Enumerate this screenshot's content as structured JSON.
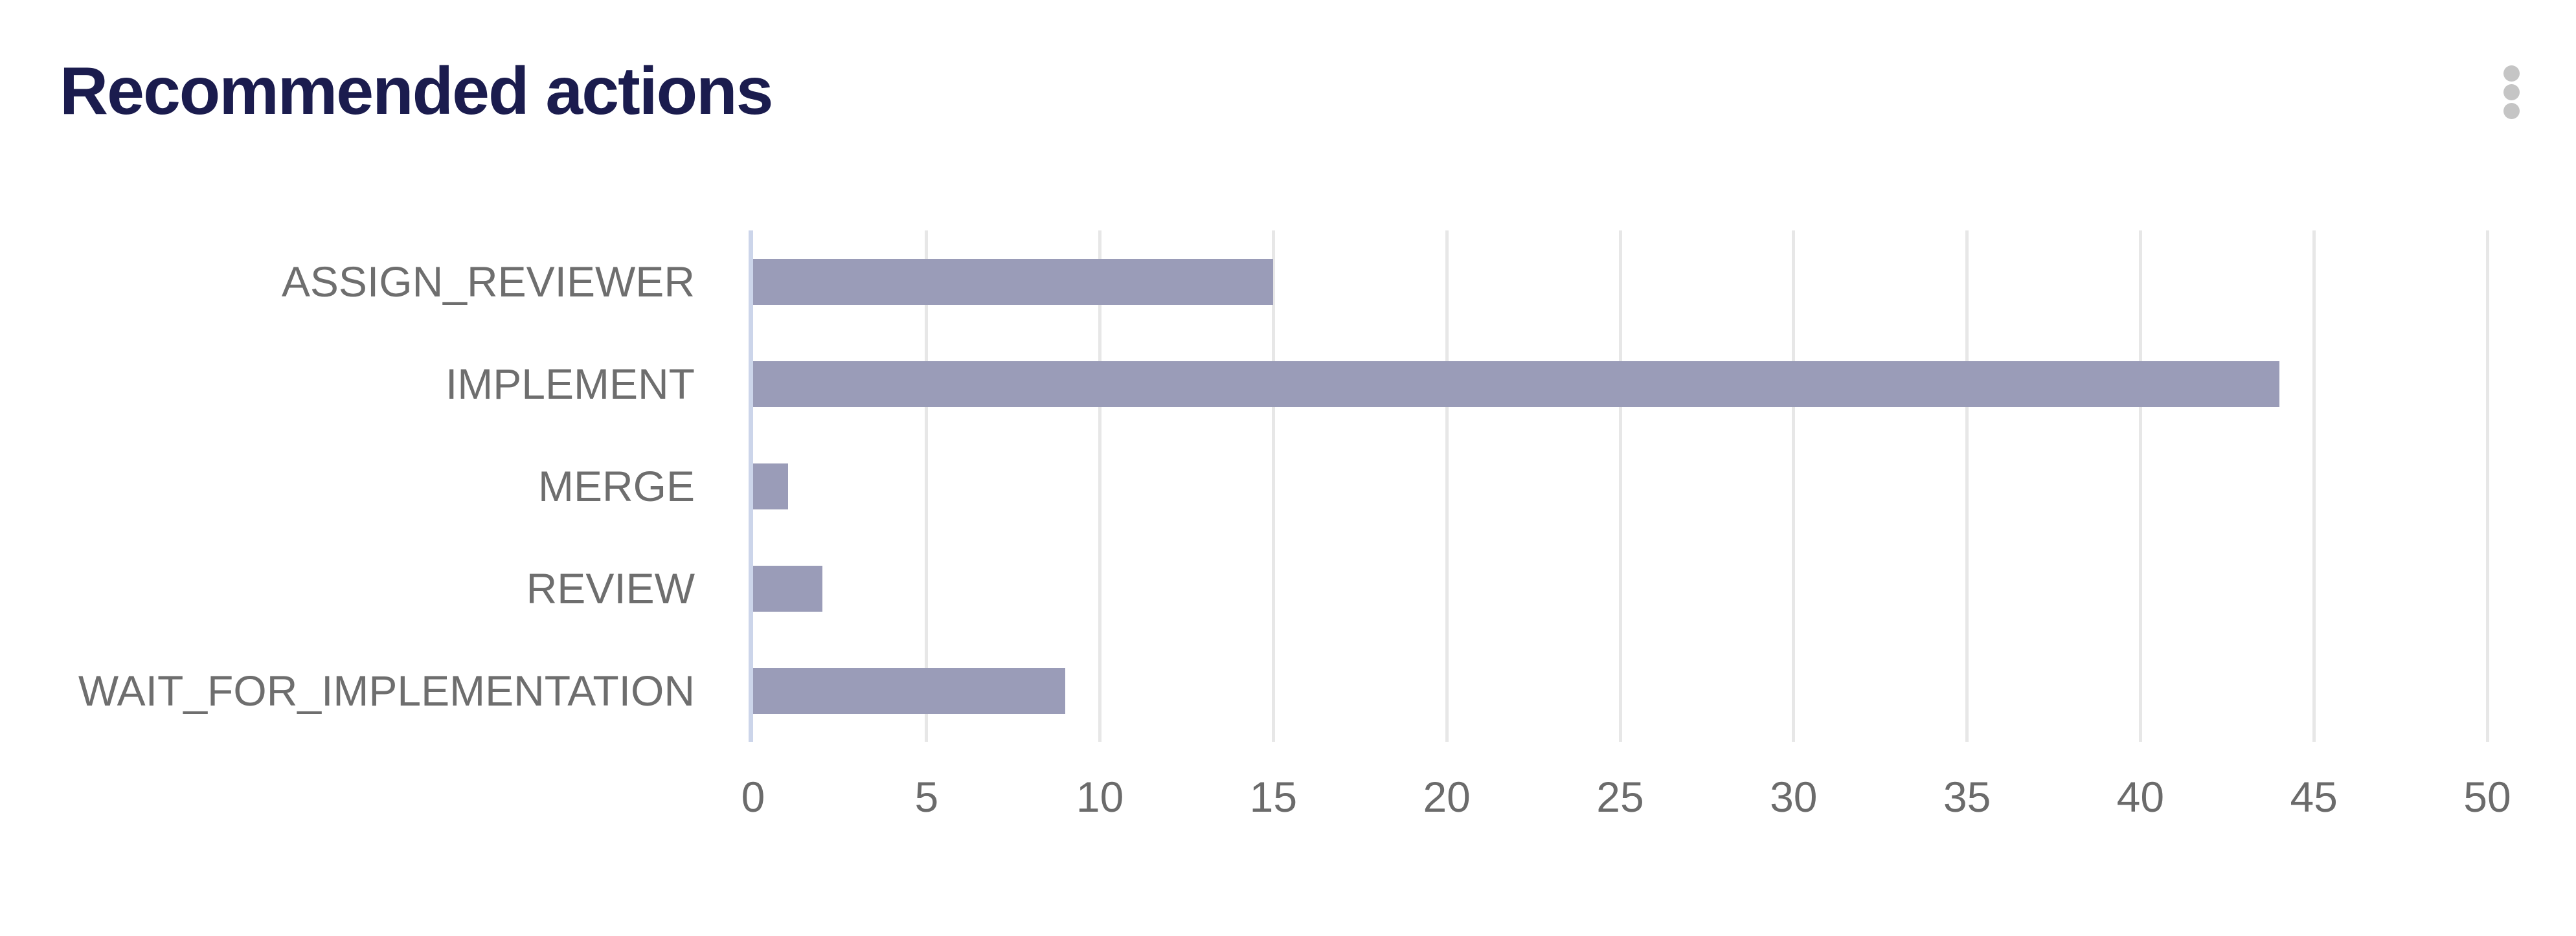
{
  "header": {
    "title": "Recommended actions",
    "menu_icon": "kebab-menu-icon"
  },
  "colors": {
    "background": "#ffffff",
    "title_text": "#1b1c4e",
    "bar_fill": "#9a9cb8",
    "axis_baseline": "#ccd5ea",
    "gridline": "#e7e7e7",
    "category_label": "#6e6e6e",
    "tick_label": "#6b6b6b",
    "menu_dots": "#c5c5c5"
  },
  "chart_data": {
    "type": "bar",
    "orientation": "horizontal",
    "title": "Recommended actions",
    "categories": [
      "ASSIGN_REVIEWER",
      "IMPLEMENT",
      "MERGE",
      "REVIEW",
      "WAIT_FOR_IMPLEMENTATION"
    ],
    "values": [
      15,
      44,
      1,
      2,
      9
    ],
    "xlabel": "",
    "ylabel": "",
    "xlim": [
      0,
      50
    ],
    "xticks": [
      0,
      5,
      10,
      15,
      20,
      25,
      30,
      35,
      40,
      45,
      50
    ],
    "grid": true,
    "legend": false
  }
}
